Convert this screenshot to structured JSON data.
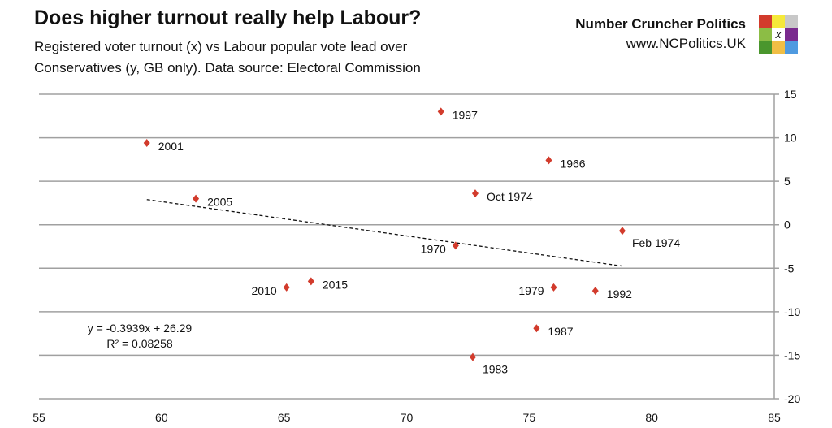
{
  "header": {
    "title": "Does higher turnout really help Labour?",
    "subtitle": "Registered voter turnout (x) vs Labour popular vote lead over Conservatives (y, GB only). Data source: Electoral Commission",
    "brand_name": "Number Cruncher Politics",
    "brand_url": "www.NCPolitics.UK",
    "logo_text": "X",
    "logo_colors": [
      "#d23b2c",
      "#f5e93a",
      "#c8c8c8",
      "#8cbd45",
      "#ffffff",
      "#7a2a8e",
      "#4a962d",
      "#f0be45",
      "#4f9ae0"
    ]
  },
  "chart_data": {
    "type": "scatter",
    "title": "Does higher turnout really help Labour?",
    "xlabel": "",
    "ylabel": "",
    "xlim": [
      55,
      85
    ],
    "ylim": [
      -20,
      15
    ],
    "xticks": [
      "55",
      "60",
      "65",
      "70",
      "75",
      "80",
      "85"
    ],
    "yticks": [
      "15",
      "10",
      "5",
      "0",
      "-5",
      "-10",
      "-15",
      "-20"
    ],
    "y_axis_side": "right",
    "grid": "horizontal",
    "marker_color": "#d23b2c",
    "points": [
      {
        "label": "2001",
        "x": 59.4,
        "y": 9.4
      },
      {
        "label": "2005",
        "x": 61.4,
        "y": 3.0
      },
      {
        "label": "2010",
        "x": 65.1,
        "y": -7.2
      },
      {
        "label": "2015",
        "x": 66.1,
        "y": -6.5
      },
      {
        "label": "1997",
        "x": 71.4,
        "y": 13.0
      },
      {
        "label": "1970",
        "x": 72.0,
        "y": -2.4
      },
      {
        "label": "Oct 1974",
        "x": 72.8,
        "y": 3.6
      },
      {
        "label": "1983",
        "x": 72.7,
        "y": -15.2
      },
      {
        "label": "1987",
        "x": 75.3,
        "y": -11.9
      },
      {
        "label": "1966",
        "x": 75.8,
        "y": 7.4
      },
      {
        "label": "1979",
        "x": 76.0,
        "y": -7.2
      },
      {
        "label": "1992",
        "x": 77.7,
        "y": -7.6
      },
      {
        "label": "Feb 1974",
        "x": 78.8,
        "y": -0.7
      }
    ],
    "trendline": {
      "type": "linear",
      "slope": -0.3939,
      "intercept": 26.29,
      "x_range": [
        59.4,
        78.8
      ],
      "style": "dashed"
    },
    "annotations": [
      "y = -0.3939x + 26.29",
      "R² = 0.08258"
    ]
  }
}
